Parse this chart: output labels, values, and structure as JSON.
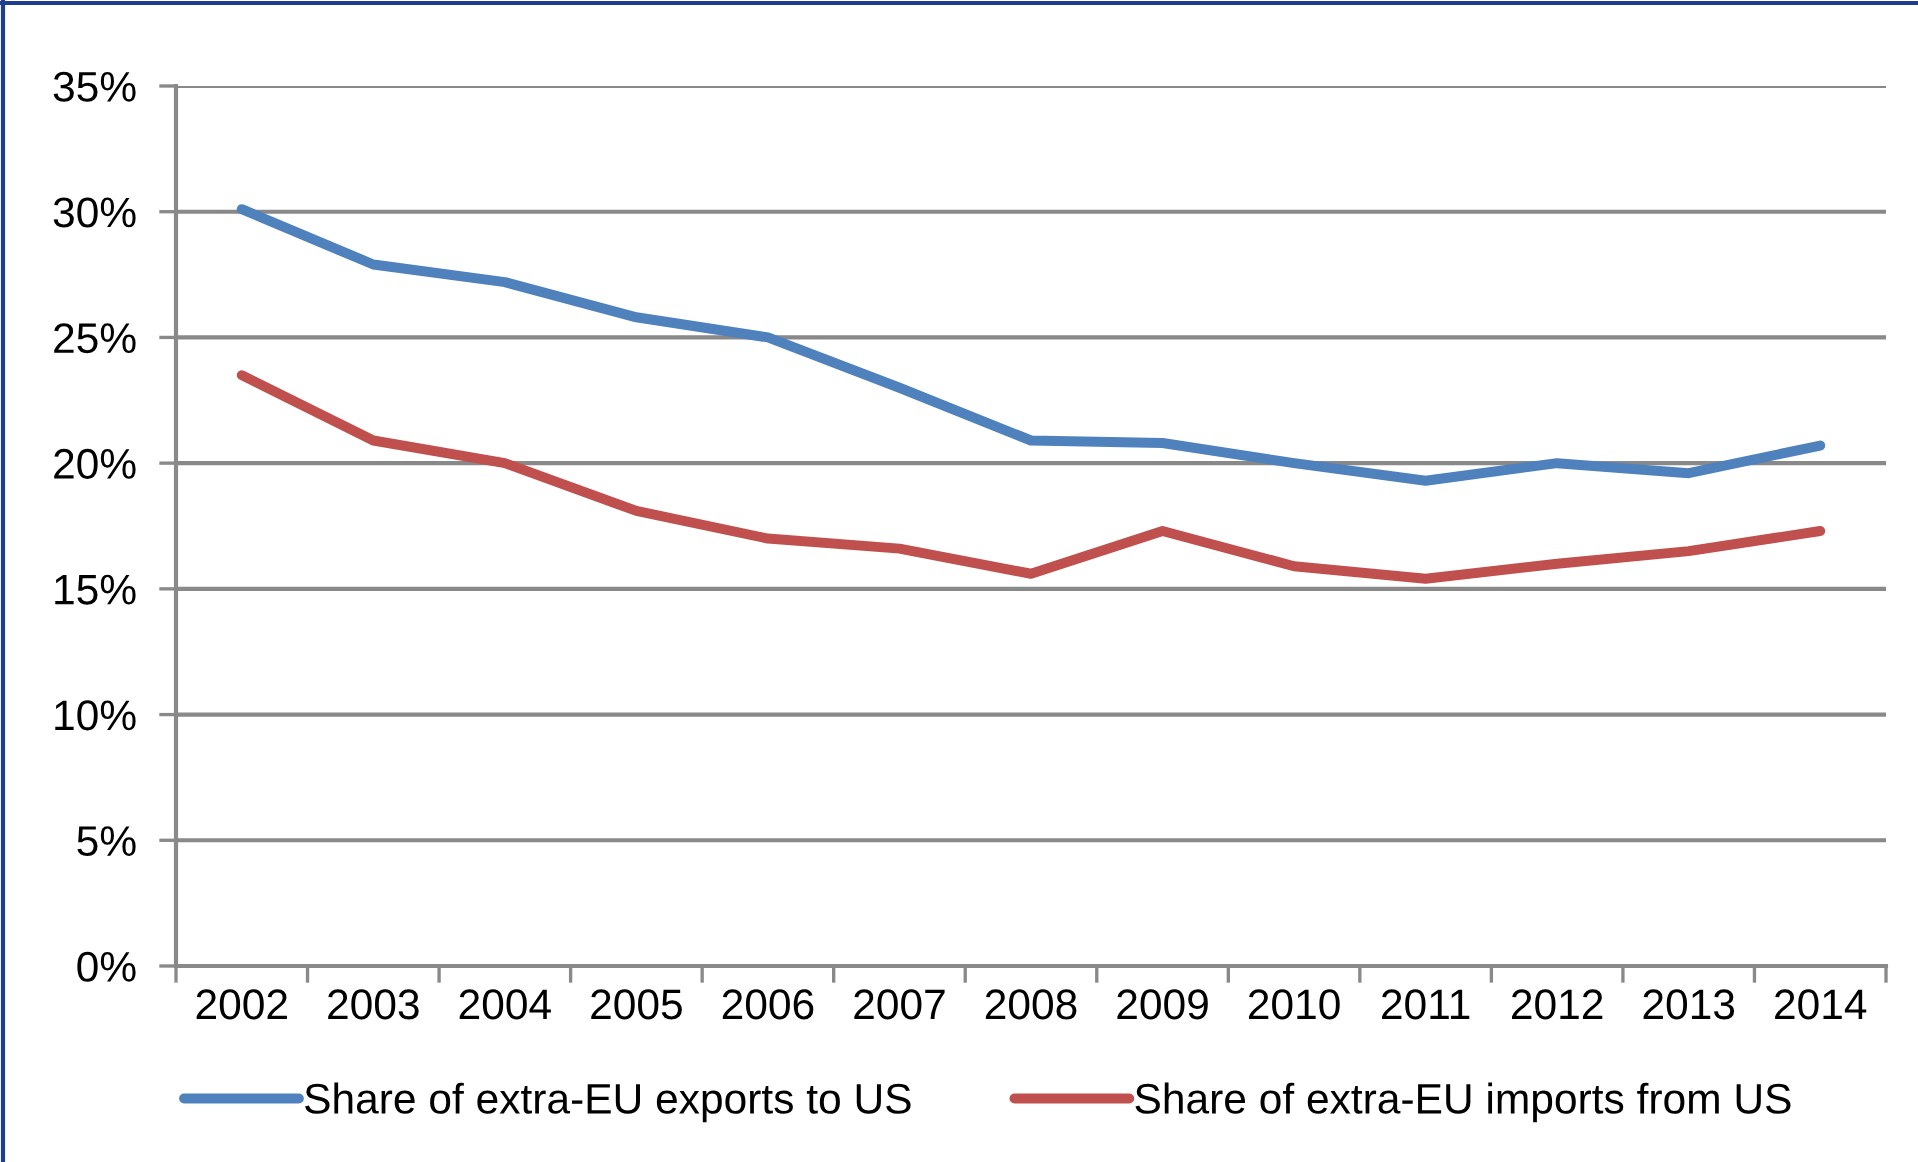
{
  "chart_data": {
    "type": "line",
    "categories": [
      "2002",
      "2003",
      "2004",
      "2005",
      "2006",
      "2007",
      "2008",
      "2009",
      "2010",
      "2011",
      "2012",
      "2013",
      "2014"
    ],
    "series": [
      {
        "name": "Share of extra-EU exports to US",
        "color": "#4f81bd",
        "values": [
          30.1,
          27.9,
          27.2,
          25.8,
          25.0,
          23.0,
          20.9,
          20.8,
          20.0,
          19.3,
          20.0,
          19.6,
          20.7
        ]
      },
      {
        "name": "Share of extra-EU imports from US",
        "color": "#c0504d",
        "values": [
          23.5,
          20.9,
          20.0,
          18.1,
          17.0,
          16.6,
          15.6,
          17.3,
          15.9,
          15.4,
          16.0,
          16.5,
          17.3
        ]
      }
    ],
    "ylim": [
      0,
      35
    ],
    "yticks": [
      {
        "value": 0,
        "label": "0%"
      },
      {
        "value": 5,
        "label": "5%"
      },
      {
        "value": 10,
        "label": "10%"
      },
      {
        "value": 15,
        "label": "15%"
      },
      {
        "value": 20,
        "label": "20%"
      },
      {
        "value": 25,
        "label": "25%"
      },
      {
        "value": 30,
        "label": "30%"
      },
      {
        "value": 35,
        "label": "35%"
      }
    ],
    "grid": "y",
    "legend": "bottom",
    "line_style": "solid"
  }
}
